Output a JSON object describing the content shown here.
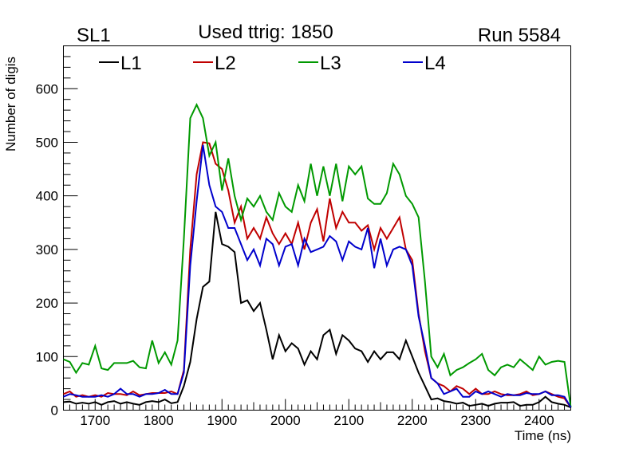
{
  "header": {
    "left": "SL1",
    "center": "Used ttrig: 1850",
    "right": "Run 5584"
  },
  "chart_data": {
    "type": "line",
    "xlabel": "Time (ns)",
    "ylabel": "Number of digis",
    "xlim": [
      1650,
      2450
    ],
    "ylim": [
      0,
      680
    ],
    "x_ticks": [
      1700,
      1800,
      1900,
      2000,
      2100,
      2200,
      2300,
      2400
    ],
    "y_ticks": [
      0,
      100,
      200,
      300,
      400,
      500,
      600
    ],
    "legend_position": "top",
    "x": [
      1650,
      1660,
      1670,
      1680,
      1690,
      1700,
      1710,
      1720,
      1730,
      1740,
      1750,
      1760,
      1770,
      1780,
      1790,
      1800,
      1810,
      1820,
      1830,
      1840,
      1850,
      1860,
      1870,
      1880,
      1890,
      1900,
      1910,
      1920,
      1930,
      1940,
      1950,
      1960,
      1970,
      1980,
      1990,
      2000,
      2010,
      2020,
      2030,
      2040,
      2050,
      2060,
      2070,
      2080,
      2090,
      2100,
      2110,
      2120,
      2130,
      2140,
      2150,
      2160,
      2170,
      2180,
      2190,
      2200,
      2210,
      2220,
      2230,
      2240,
      2250,
      2260,
      2270,
      2280,
      2290,
      2300,
      2310,
      2320,
      2330,
      2340,
      2350,
      2360,
      2370,
      2380,
      2390,
      2400,
      2410,
      2420,
      2430,
      2440,
      2450
    ],
    "series": [
      {
        "name": "L1",
        "color": "#000000",
        "values": [
          15,
          16,
          12,
          14,
          12,
          15,
          10,
          15,
          17,
          12,
          15,
          12,
          10,
          15,
          17,
          15,
          20,
          13,
          15,
          45,
          90,
          170,
          230,
          240,
          370,
          310,
          305,
          295,
          200,
          205,
          185,
          200,
          150,
          95,
          140,
          110,
          125,
          115,
          85,
          110,
          95,
          140,
          150,
          105,
          140,
          130,
          115,
          110,
          90,
          110,
          95,
          108,
          108,
          95,
          130,
          100,
          70,
          45,
          20,
          22,
          17,
          15,
          12,
          14,
          8,
          10,
          12,
          8,
          12,
          14,
          14,
          15,
          8,
          10,
          10,
          15,
          25,
          15,
          12,
          10,
          5
        ]
      },
      {
        "name": "L2",
        "color": "#c00000",
        "values": [
          30,
          35,
          25,
          28,
          25,
          28,
          25,
          32,
          30,
          30,
          28,
          35,
          28,
          30,
          32,
          32,
          32,
          35,
          30,
          75,
          300,
          440,
          500,
          498,
          460,
          450,
          410,
          350,
          380,
          320,
          340,
          320,
          360,
          330,
          310,
          330,
          310,
          350,
          300,
          350,
          375,
          315,
          395,
          340,
          370,
          350,
          350,
          335,
          345,
          300,
          340,
          320,
          340,
          360,
          300,
          280,
          180,
          110,
          60,
          50,
          45,
          35,
          45,
          40,
          30,
          40,
          30,
          30,
          35,
          30,
          28,
          28,
          30,
          35,
          28,
          30,
          35,
          30,
          25,
          22,
          5
        ]
      },
      {
        "name": "L3",
        "color": "#009900",
        "values": [
          95,
          90,
          70,
          88,
          85,
          120,
          78,
          75,
          88,
          88,
          88,
          92,
          80,
          78,
          130,
          88,
          108,
          85,
          130,
          320,
          545,
          570,
          545,
          475,
          500,
          410,
          470,
          400,
          355,
          395,
          380,
          400,
          370,
          355,
          405,
          380,
          370,
          420,
          390,
          460,
          400,
          455,
          400,
          460,
          390,
          455,
          440,
          455,
          395,
          385,
          385,
          405,
          460,
          440,
          400,
          385,
          360,
          240,
          100,
          80,
          105,
          65,
          75,
          80,
          88,
          95,
          105,
          75,
          65,
          80,
          85,
          80,
          95,
          85,
          75,
          100,
          85,
          90,
          92,
          90,
          5
        ]
      },
      {
        "name": "L4",
        "color": "#0000cc",
        "values": [
          25,
          30,
          28,
          25,
          25,
          25,
          28,
          25,
          30,
          40,
          30,
          30,
          25,
          30,
          30,
          32,
          38,
          30,
          30,
          70,
          270,
          390,
          495,
          420,
          380,
          370,
          340,
          340,
          310,
          280,
          300,
          270,
          320,
          310,
          270,
          305,
          310,
          270,
          320,
          295,
          300,
          305,
          325,
          315,
          280,
          315,
          305,
          300,
          340,
          265,
          320,
          270,
          300,
          305,
          300,
          270,
          175,
          120,
          60,
          50,
          30,
          35,
          40,
          25,
          25,
          35,
          30,
          35,
          30,
          25,
          30,
          28,
          28,
          32,
          30,
          30,
          35,
          28,
          28,
          25,
          5
        ]
      }
    ]
  }
}
